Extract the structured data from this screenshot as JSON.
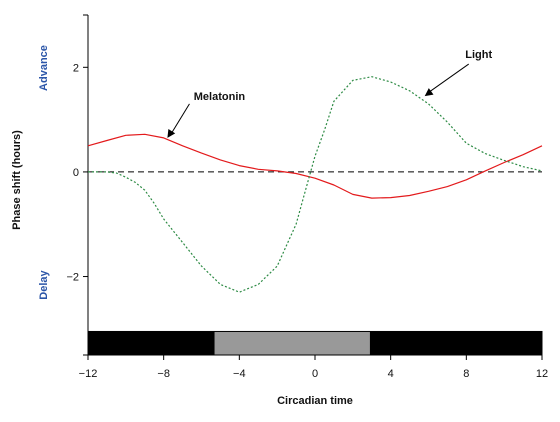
{
  "chart_data": {
    "type": "line",
    "title": "",
    "xlabel": "Circadian time",
    "ylabel": "Phase shift (hours)",
    "xlim": [
      -12,
      12
    ],
    "ylim": [
      -3.5,
      3
    ],
    "x_ticks": [
      -12,
      -8,
      -4,
      0,
      4,
      8,
      12
    ],
    "x_tick_labels": [
      "−12",
      "−8",
      "−4",
      "0",
      "4",
      "8",
      "12"
    ],
    "y_ticks": [
      -2,
      0,
      2
    ],
    "y_tick_labels": [
      "−2",
      "0",
      "2"
    ],
    "side_labels": {
      "advance": "Advance",
      "delay": "Delay"
    },
    "series": [
      {
        "name": "Melatonin",
        "color": "#e31a1c",
        "style": "solid",
        "x": [
          -12,
          -11,
          -10,
          -9,
          -8,
          -7,
          -6,
          -5,
          -4,
          -3,
          -2,
          -1,
          0,
          1,
          2,
          3,
          4,
          5,
          6,
          7,
          8,
          9,
          10,
          11,
          12
        ],
        "y": [
          0.5,
          0.6,
          0.7,
          0.72,
          0.65,
          0.5,
          0.36,
          0.23,
          0.12,
          0.05,
          0.02,
          -0.03,
          -0.12,
          -0.25,
          -0.43,
          -0.5,
          -0.49,
          -0.45,
          -0.37,
          -0.28,
          -0.15,
          0.02,
          0.18,
          0.33,
          0.5
        ]
      },
      {
        "name": "Light",
        "color": "#2e8b45",
        "style": "dotted",
        "x": [
          -12,
          -11,
          -10.5,
          -10,
          -9.5,
          -9,
          -8.5,
          -8,
          -7,
          -6,
          -5,
          -4,
          -3,
          -2,
          -1.5,
          -1,
          -0.5,
          0,
          0.5,
          1,
          2,
          3,
          4,
          5,
          6,
          7,
          8,
          9,
          10,
          11,
          12
        ],
        "y": [
          0.0,
          0.0,
          -0.02,
          -0.1,
          -0.2,
          -0.35,
          -0.6,
          -0.9,
          -1.35,
          -1.8,
          -2.15,
          -2.3,
          -2.15,
          -1.8,
          -1.4,
          -1.0,
          -0.35,
          0.3,
          0.8,
          1.35,
          1.75,
          1.82,
          1.72,
          1.55,
          1.3,
          0.95,
          0.55,
          0.35,
          0.22,
          0.1,
          0.02
        ]
      }
    ],
    "reference_line": {
      "y": 0,
      "style": "dashed",
      "color": "#000000"
    },
    "annotations": [
      {
        "text": "Melatonin",
        "series": "Melatonin",
        "point_x": -7.8,
        "point_y": 0.65
      },
      {
        "text": "Light",
        "series": "Light",
        "point_x": 5.8,
        "point_y": 1.45
      }
    ],
    "light_dark_bar": [
      {
        "from": -12,
        "to": -5.3,
        "phase": "dark",
        "color": "#000000"
      },
      {
        "from": -5.3,
        "to": 2.9,
        "phase": "light",
        "color": "#999999"
      },
      {
        "from": 2.9,
        "to": 12,
        "phase": "dark",
        "color": "#000000"
      }
    ],
    "grid": false,
    "legend": "none"
  }
}
